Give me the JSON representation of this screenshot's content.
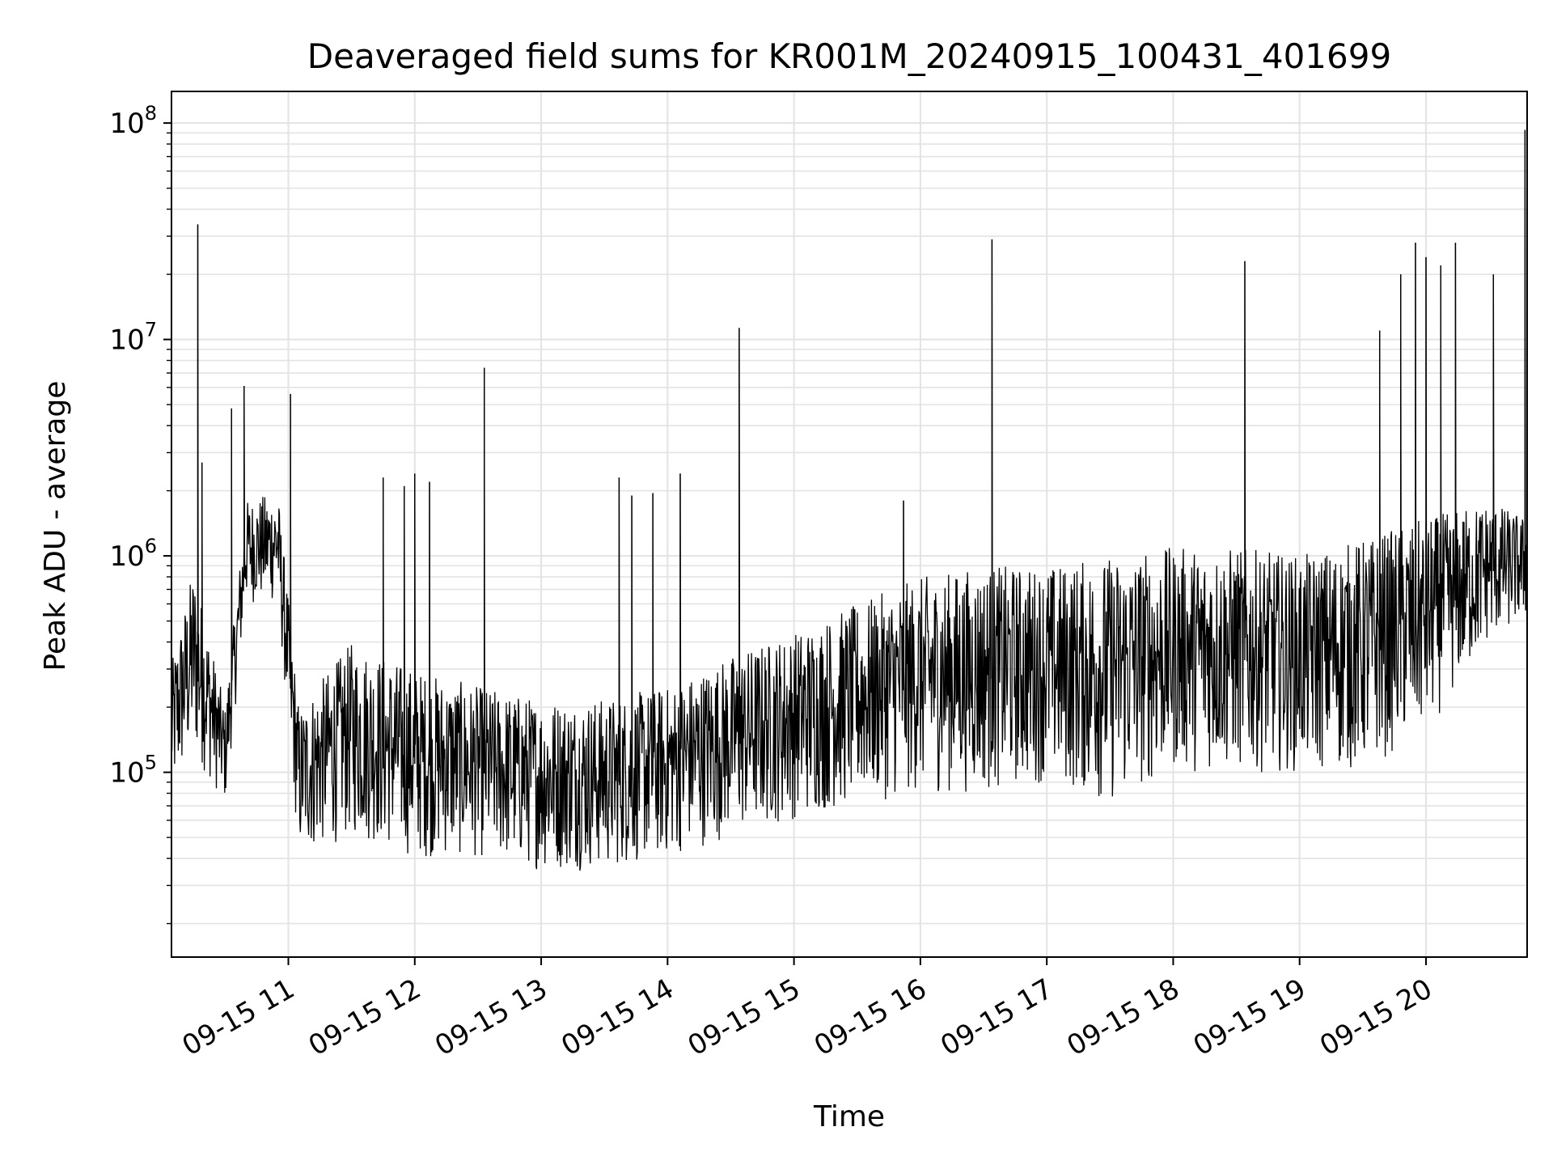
{
  "chart_data": {
    "type": "line",
    "title": "Deaveraged field sums for KR001M_20240915_100431_401699",
    "xlabel": "Time",
    "ylabel": "Peak ADU - average",
    "y_scale": "log",
    "ylim": [
      14000,
      140000000
    ],
    "xlim": [
      "2024-09-15 10:04:31",
      "2024-09-15 20:48:00"
    ],
    "grid": true,
    "x_ticks": [
      {
        "value": "2024-09-15 11:00",
        "label": "09-15 11"
      },
      {
        "value": "2024-09-15 12:00",
        "label": "09-15 12"
      },
      {
        "value": "2024-09-15 13:00",
        "label": "09-15 13"
      },
      {
        "value": "2024-09-15 14:00",
        "label": "09-15 14"
      },
      {
        "value": "2024-09-15 15:00",
        "label": "09-15 15"
      },
      {
        "value": "2024-09-15 16:00",
        "label": "09-15 16"
      },
      {
        "value": "2024-09-15 17:00",
        "label": "09-15 17"
      },
      {
        "value": "2024-09-15 18:00",
        "label": "09-15 18"
      },
      {
        "value": "2024-09-15 19:00",
        "label": "09-15 19"
      },
      {
        "value": "2024-09-15 20:00",
        "label": "09-15 20"
      }
    ],
    "y_ticks": [
      {
        "value": 100000,
        "base": "10",
        "exp": "5"
      },
      {
        "value": 1000000,
        "base": "10",
        "exp": "6"
      },
      {
        "value": 10000000,
        "base": "10",
        "exp": "7"
      },
      {
        "value": 100000000,
        "base": "10",
        "exp": "8"
      }
    ],
    "series": [
      {
        "line_color": "#000000",
        "baseline_envelope": [
          {
            "x": "2024-09-15 10:04",
            "low": 70000,
            "high": 300000
          },
          {
            "x": "2024-09-15 10:15",
            "low": 120000,
            "high": 900000
          },
          {
            "x": "2024-09-15 10:30",
            "low": 70000,
            "high": 200000
          },
          {
            "x": "2024-09-15 10:40",
            "low": 600000,
            "high": 1800000
          },
          {
            "x": "2024-09-15 10:55",
            "low": 600000,
            "high": 2000000
          },
          {
            "x": "2024-09-15 11:05",
            "low": 40000,
            "high": 200000
          },
          {
            "x": "2024-09-15 11:30",
            "low": 50000,
            "high": 400000
          },
          {
            "x": "2024-09-15 12:00",
            "low": 40000,
            "high": 300000
          },
          {
            "x": "2024-09-15 12:30",
            "low": 40000,
            "high": 250000
          },
          {
            "x": "2024-09-15 13:00",
            "low": 35000,
            "high": 220000
          },
          {
            "x": "2024-09-15 13:30",
            "low": 35000,
            "high": 220000
          },
          {
            "x": "2024-09-15 14:00",
            "low": 40000,
            "high": 250000
          },
          {
            "x": "2024-09-15 14:30",
            "low": 50000,
            "high": 350000
          },
          {
            "x": "2024-09-15 15:00",
            "low": 60000,
            "high": 450000
          },
          {
            "x": "2024-09-15 15:30",
            "low": 70000,
            "high": 600000
          },
          {
            "x": "2024-09-15 16:00",
            "low": 80000,
            "high": 800000
          },
          {
            "x": "2024-09-15 16:30",
            "low": 80000,
            "high": 900000
          },
          {
            "x": "2024-09-15 17:00",
            "low": 90000,
            "high": 900000
          },
          {
            "x": "2024-09-15 17:30",
            "low": 70000,
            "high": 1000000
          },
          {
            "x": "2024-09-15 18:00",
            "low": 100000,
            "high": 1100000
          },
          {
            "x": "2024-09-15 18:30",
            "low": 100000,
            "high": 1100000
          },
          {
            "x": "2024-09-15 19:00",
            "low": 100000,
            "high": 1000000
          },
          {
            "x": "2024-09-15 19:30",
            "low": 100000,
            "high": 1200000
          },
          {
            "x": "2024-09-15 20:00",
            "low": 150000,
            "high": 1500000
          },
          {
            "x": "2024-09-15 20:30",
            "low": 400000,
            "high": 1800000
          },
          {
            "x": "2024-09-15 20:48",
            "low": 500000,
            "high": 1500000
          }
        ],
        "spikes": [
          {
            "x": "2024-09-15 10:17",
            "y": 34000000
          },
          {
            "x": "2024-09-15 10:19",
            "y": 2700000
          },
          {
            "x": "2024-09-15 10:33",
            "y": 4800000
          },
          {
            "x": "2024-09-15 10:39",
            "y": 6100000
          },
          {
            "x": "2024-09-15 11:01",
            "y": 5600000
          },
          {
            "x": "2024-09-15 11:45",
            "y": 2300000
          },
          {
            "x": "2024-09-15 11:55",
            "y": 2100000
          },
          {
            "x": "2024-09-15 12:00",
            "y": 2400000
          },
          {
            "x": "2024-09-15 12:07",
            "y": 2200000
          },
          {
            "x": "2024-09-15 12:33",
            "y": 7400000
          },
          {
            "x": "2024-09-15 13:37",
            "y": 2300000
          },
          {
            "x": "2024-09-15 13:43",
            "y": 1900000
          },
          {
            "x": "2024-09-15 13:53",
            "y": 1950000
          },
          {
            "x": "2024-09-15 14:06",
            "y": 2400000
          },
          {
            "x": "2024-09-15 14:34",
            "y": 11300000
          },
          {
            "x": "2024-09-15 15:52",
            "y": 1800000
          },
          {
            "x": "2024-09-15 16:34",
            "y": 29000000
          },
          {
            "x": "2024-09-15 18:34",
            "y": 23000000
          },
          {
            "x": "2024-09-15 19:38",
            "y": 11000000
          },
          {
            "x": "2024-09-15 19:48",
            "y": 20000000
          },
          {
            "x": "2024-09-15 19:55",
            "y": 28000000
          },
          {
            "x": "2024-09-15 20:00",
            "y": 24000000
          },
          {
            "x": "2024-09-15 20:07",
            "y": 22000000
          },
          {
            "x": "2024-09-15 20:14",
            "y": 28000000
          },
          {
            "x": "2024-09-15 20:32",
            "y": 20000000
          },
          {
            "x": "2024-09-15 20:47",
            "y": 93000000
          }
        ]
      }
    ]
  }
}
